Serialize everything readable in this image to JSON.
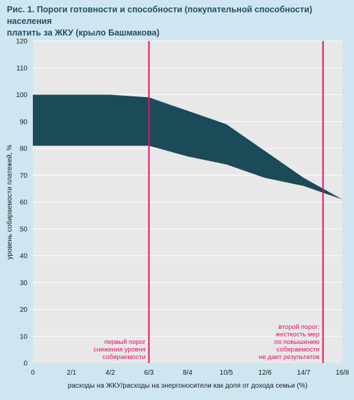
{
  "figure": {
    "title_line1": "Рис. 1. Пороги готовности и способности (покупательной способности) населения",
    "title_line2": "платить за ЖКУ (крыло Башмакова)"
  },
  "colors": {
    "background": "#cfe6f1",
    "plot_bg": "#e8e8e8",
    "band": "#1b4a59",
    "threshold_line": "#e0106a",
    "title": "#1e4f66"
  },
  "chart_data": {
    "type": "area",
    "categories": [
      "0",
      "2/1",
      "4/2",
      "6/3",
      "8/4",
      "10/5",
      "12/6",
      "14/7",
      "16/8"
    ],
    "xlabel": "расходы на ЖКУ/расходы на энергоносители как доля от дохода семьи (%)",
    "ylabel": "уровень собираемости платежей, %",
    "ylim": [
      0,
      120
    ],
    "yticks": [
      0,
      10,
      20,
      30,
      40,
      50,
      60,
      70,
      80,
      90,
      100,
      110,
      120
    ],
    "grid": true,
    "series": [
      {
        "role": "upper",
        "x": [
          0,
          2,
          4,
          6,
          8,
          10,
          12,
          14,
          16
        ],
        "values": [
          100,
          100,
          100,
          99,
          94,
          89,
          79,
          69,
          61
        ]
      },
      {
        "role": "lower",
        "x": [
          0,
          2,
          4,
          6,
          8,
          10,
          12,
          14,
          16
        ],
        "values": [
          81,
          81,
          81,
          81,
          77,
          74,
          69,
          66,
          61
        ]
      }
    ],
    "thresholds": [
      {
        "x": 6,
        "lines": [
          "первый порог",
          "снижения уровня",
          "собираемости"
        ]
      },
      {
        "x": 15,
        "lines": [
          "второй порог:",
          "жесткость мер",
          "по повышению",
          "собираемости",
          "не дает результатов"
        ]
      }
    ]
  }
}
